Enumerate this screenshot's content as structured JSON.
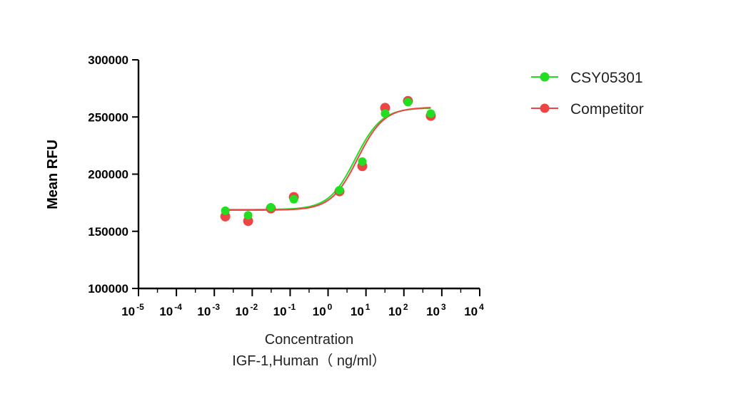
{
  "chart_data": {
    "type": "scatter",
    "xscale": "log",
    "xlim_exponents": [
      -5,
      4
    ],
    "x_tick_base": "10",
    "x_tick_exponents": [
      "-5",
      "-4",
      "-3",
      "-2",
      "-1",
      "0",
      "1",
      "2",
      "3",
      "4"
    ],
    "ylim": [
      100000,
      300000
    ],
    "y_ticks": [
      100000,
      150000,
      200000,
      250000,
      300000
    ],
    "y_tick_labels": [
      "100000",
      "150000",
      "200000",
      "250000",
      "300000"
    ],
    "ylabel": "Mean RFU",
    "xlabel": "Concentration",
    "xlabel_line2": "IGF-1,Human（ ng/ml）",
    "legend_position": "right",
    "grid": false,
    "series": [
      {
        "name": "CSY05301",
        "color": "#22dd22",
        "x": [
          0.00195,
          0.0078,
          0.031,
          0.125,
          2,
          8,
          32,
          128,
          512
        ],
        "y": [
          168000,
          164000,
          171000,
          178000,
          186000,
          211000,
          253000,
          263000,
          253000
        ],
        "fit": {
          "bottom": 169000,
          "top": 258000,
          "logEC50": 0.72,
          "hill": 1.25
        }
      },
      {
        "name": "Competitor",
        "color": "#ee4444",
        "x": [
          0.00195,
          0.0078,
          0.031,
          0.125,
          2,
          8,
          32,
          128,
          512
        ],
        "y": [
          163000,
          159000,
          170000,
          180000,
          185000,
          207000,
          258000,
          264000,
          251000
        ],
        "fit": {
          "bottom": 168500,
          "top": 258500,
          "logEC50": 0.78,
          "hill": 1.25
        }
      }
    ]
  }
}
